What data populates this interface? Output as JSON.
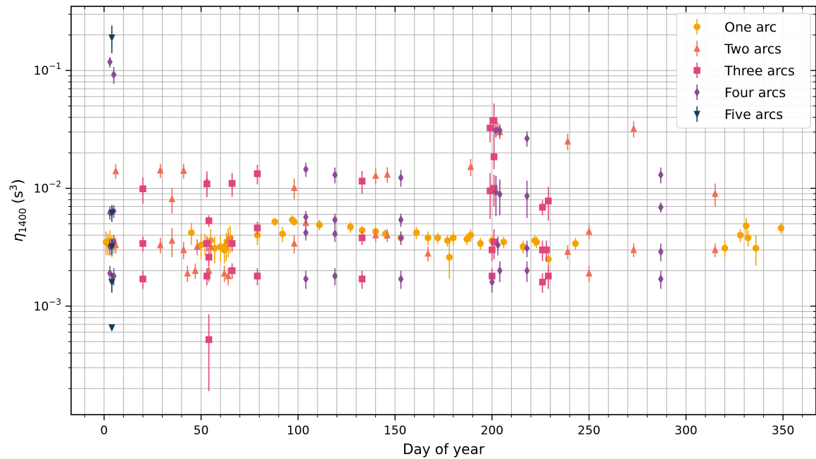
{
  "chart_data": {
    "type": "scatter",
    "title": "",
    "xlabel": "Day of year",
    "ylabel_main": "η",
    "ylabel_sub": "1400",
    "ylabel_unit": "(s",
    "ylabel_unit_sup": "3",
    "ylabel_unit_close": ")",
    "xlim": [
      -17,
      367
    ],
    "ylim": [
      0.00012,
      0.35
    ],
    "yscale": "log",
    "x_ticks": [
      0,
      50,
      100,
      150,
      200,
      250,
      300,
      350
    ],
    "x_tick_labels": [
      "0",
      "50",
      "100",
      "150",
      "200",
      "250",
      "300",
      "350"
    ],
    "y_ticks": [
      0.001,
      0.01,
      0.1
    ],
    "y_tick_labels_base": [
      "10",
      "10",
      "10"
    ],
    "y_tick_labels_exp": [
      "−3",
      "−2",
      "−1"
    ],
    "grid": true,
    "legend": "top-right",
    "series": [
      {
        "name": "One arc",
        "marker": "circle",
        "color": "#f5a300",
        "points": [
          [
            1,
            0.0035,
            0.0008
          ],
          [
            2,
            0.0034,
            0.0007
          ],
          [
            3,
            0.0036,
            0.0008
          ],
          [
            4,
            0.0033,
            0.0007
          ],
          [
            5,
            0.0034,
            0.0006
          ],
          [
            45,
            0.0042,
            0.0009
          ],
          [
            50,
            0.0033,
            0.0008
          ],
          [
            52,
            0.0034,
            0.0007
          ],
          [
            55,
            0.0036,
            0.0009
          ],
          [
            57,
            0.0031,
            0.0008
          ],
          [
            60,
            0.0032,
            0.0008
          ],
          [
            62,
            0.003,
            0.0007
          ],
          [
            63,
            0.0033,
            0.0009
          ],
          [
            64,
            0.0036,
            0.001
          ],
          [
            65,
            0.0038,
            0.001
          ],
          [
            79,
            0.004,
            0.0007
          ],
          [
            88,
            0.0052,
            0.0004
          ],
          [
            92,
            0.0041,
            0.0006
          ],
          [
            97,
            0.0054,
            0.0005
          ],
          [
            98,
            0.0052,
            0.0004
          ],
          [
            111,
            0.0049,
            0.0005
          ],
          [
            127,
            0.0047,
            0.0005
          ],
          [
            133,
            0.0044,
            0.0004
          ],
          [
            140,
            0.0043,
            0.0004
          ],
          [
            145,
            0.0041,
            0.0004
          ],
          [
            153,
            0.0038,
            0.0005
          ],
          [
            161,
            0.0042,
            0.0005
          ],
          [
            167,
            0.0038,
            0.0005
          ],
          [
            172,
            0.0038,
            0.0004
          ],
          [
            177,
            0.0036,
            0.0004
          ],
          [
            178,
            0.0026,
            0.0009
          ],
          [
            180,
            0.0038,
            0.0005
          ],
          [
            187,
            0.0037,
            0.0004
          ],
          [
            189,
            0.004,
            0.0005
          ],
          [
            194,
            0.0034,
            0.0004
          ],
          [
            200,
            0.0036,
            0.0004
          ],
          [
            206,
            0.0035,
            0.0004
          ],
          [
            216,
            0.0032,
            0.0004
          ],
          [
            222,
            0.0036,
            0.0004
          ],
          [
            223,
            0.0035,
            0.0004
          ],
          [
            229,
            0.0025,
            0.0005
          ],
          [
            243,
            0.0034,
            0.0004
          ],
          [
            320,
            0.0031,
            0.0005
          ],
          [
            328,
            0.004,
            0.0005
          ],
          [
            331,
            0.0048,
            0.0008
          ],
          [
            332,
            0.0038,
            0.0006
          ],
          [
            336,
            0.0031,
            0.0009
          ],
          [
            349,
            0.0046,
            0.0005
          ]
        ]
      },
      {
        "name": "Two arcs",
        "marker": "triangle-up",
        "color": "#f06e55",
        "points": [
          [
            6,
            0.014,
            0.002
          ],
          [
            6,
            0.0033,
            0.0005
          ],
          [
            29,
            0.0142,
            0.002
          ],
          [
            29,
            0.0033,
            0.0005
          ],
          [
            35,
            0.0081,
            0.002
          ],
          [
            35,
            0.0036,
            0.001
          ],
          [
            41,
            0.0141,
            0.002
          ],
          [
            41,
            0.003,
            0.0005
          ],
          [
            43,
            0.0019,
            0.0003
          ],
          [
            47,
            0.002,
            0.0003
          ],
          [
            48,
            0.0032,
            0.0005
          ],
          [
            53,
            0.0115,
            0.0025
          ],
          [
            54,
            0.002,
            0.0004
          ],
          [
            55,
            0.0032,
            0.0006
          ],
          [
            62,
            0.0019,
            0.0003
          ],
          [
            64,
            0.0018,
            0.0003
          ],
          [
            64,
            0.0036,
            0.0006
          ],
          [
            98,
            0.0101,
            0.002
          ],
          [
            98,
            0.0034,
            0.0006
          ],
          [
            104,
            0.0051,
            0.0007
          ],
          [
            140,
            0.0128,
            0.002
          ],
          [
            140,
            0.004,
            0.0005
          ],
          [
            146,
            0.0131,
            0.002
          ],
          [
            146,
            0.004,
            0.0005
          ],
          [
            167,
            0.0028,
            0.0004
          ],
          [
            189,
            0.0152,
            0.0025
          ],
          [
            203,
            0.032,
            0.004
          ],
          [
            204,
            0.03,
            0.004
          ],
          [
            239,
            0.025,
            0.004
          ],
          [
            239,
            0.0029,
            0.0004
          ],
          [
            250,
            0.0043,
            0.0006
          ],
          [
            250,
            0.0019,
            0.0003
          ],
          [
            273,
            0.032,
            0.005
          ],
          [
            273,
            0.003,
            0.0004
          ],
          [
            315,
            0.009,
            0.002
          ],
          [
            315,
            0.003,
            0.0004
          ]
        ]
      },
      {
        "name": "Three arcs",
        "marker": "square",
        "color": "#e0457b",
        "points": [
          [
            20,
            0.0099,
            0.0025
          ],
          [
            20,
            0.0034,
            0.0005
          ],
          [
            20,
            0.0017,
            0.0003
          ],
          [
            53,
            0.0109,
            0.0025
          ],
          [
            53,
            0.0034,
            0.0005
          ],
          [
            53,
            0.0018,
            0.0003
          ],
          [
            54,
            0.0053,
            0.0006
          ],
          [
            54,
            0.0026,
            0.0004
          ],
          [
            54,
            0.00052,
            0.00033
          ],
          [
            66,
            0.011,
            0.0025
          ],
          [
            66,
            0.0034,
            0.0005
          ],
          [
            66,
            0.002,
            0.0003
          ],
          [
            79,
            0.0133,
            0.0025
          ],
          [
            79,
            0.0046,
            0.0006
          ],
          [
            79,
            0.0018,
            0.0003
          ],
          [
            133,
            0.0115,
            0.0025
          ],
          [
            133,
            0.0038,
            0.0005
          ],
          [
            133,
            0.0017,
            0.0003
          ],
          [
            199,
            0.0325,
            0.008
          ],
          [
            199,
            0.0095,
            0.004
          ],
          [
            201,
            0.0375,
            0.015
          ],
          [
            201,
            0.0185,
            0.004
          ],
          [
            201,
            0.01,
            0.003
          ],
          [
            201,
            0.0035,
            0.001
          ],
          [
            200,
            0.003,
            0.0006
          ],
          [
            200,
            0.0018,
            0.0003
          ],
          [
            226,
            0.0069,
            0.001
          ],
          [
            226,
            0.003,
            0.0006
          ],
          [
            226,
            0.0016,
            0.0003
          ],
          [
            228,
            0.003,
            0.0006
          ],
          [
            229,
            0.0078,
            0.0025
          ],
          [
            229,
            0.0018,
            0.0004
          ]
        ]
      },
      {
        "name": "Four arcs",
        "marker": "diamond",
        "color": "#8a4a94",
        "points": [
          [
            3,
            0.118,
            0.012
          ],
          [
            5,
            0.092,
            0.015
          ],
          [
            3,
            0.0062,
            0.0008
          ],
          [
            5,
            0.0064,
            0.0008
          ],
          [
            3,
            0.0032,
            0.0005
          ],
          [
            5,
            0.0035,
            0.0005
          ],
          [
            3,
            0.0019,
            0.0003
          ],
          [
            5,
            0.0018,
            0.0003
          ],
          [
            104,
            0.0145,
            0.002
          ],
          [
            104,
            0.0057,
            0.0007
          ],
          [
            104,
            0.0042,
            0.0006
          ],
          [
            104,
            0.0017,
            0.0003
          ],
          [
            119,
            0.013,
            0.002
          ],
          [
            119,
            0.0054,
            0.0007
          ],
          [
            119,
            0.0041,
            0.0006
          ],
          [
            119,
            0.0018,
            0.0003
          ],
          [
            153,
            0.0123,
            0.002
          ],
          [
            153,
            0.0054,
            0.0007
          ],
          [
            153,
            0.0038,
            0.0005
          ],
          [
            153,
            0.0017,
            0.0003
          ],
          [
            202,
            0.031,
            0.004
          ],
          [
            204,
            0.031,
            0.004
          ],
          [
            202,
            0.0093,
            0.0035
          ],
          [
            204,
            0.0089,
            0.003
          ],
          [
            203,
            0.0033,
            0.0006
          ],
          [
            204,
            0.002,
            0.0004
          ],
          [
            200,
            0.0016,
            0.0003
          ],
          [
            218,
            0.0265,
            0.004
          ],
          [
            218,
            0.0086,
            0.003
          ],
          [
            218,
            0.0031,
            0.0005
          ],
          [
            218,
            0.002,
            0.0004
          ],
          [
            287,
            0.013,
            0.002
          ],
          [
            287,
            0.0069,
            0.0007
          ],
          [
            287,
            0.0029,
            0.0005
          ],
          [
            287,
            0.0017,
            0.0003
          ]
        ]
      },
      {
        "name": "Five arcs",
        "marker": "triangle-down",
        "color": "#123e5c",
        "points": [
          [
            4,
            0.19,
            0.05
          ],
          [
            4,
            0.0062,
            0.001
          ],
          [
            4,
            0.0032,
            0.0005
          ],
          [
            4,
            0.0016,
            0.0003
          ],
          [
            4,
            0.00066,
            4e-05
          ]
        ]
      }
    ]
  }
}
